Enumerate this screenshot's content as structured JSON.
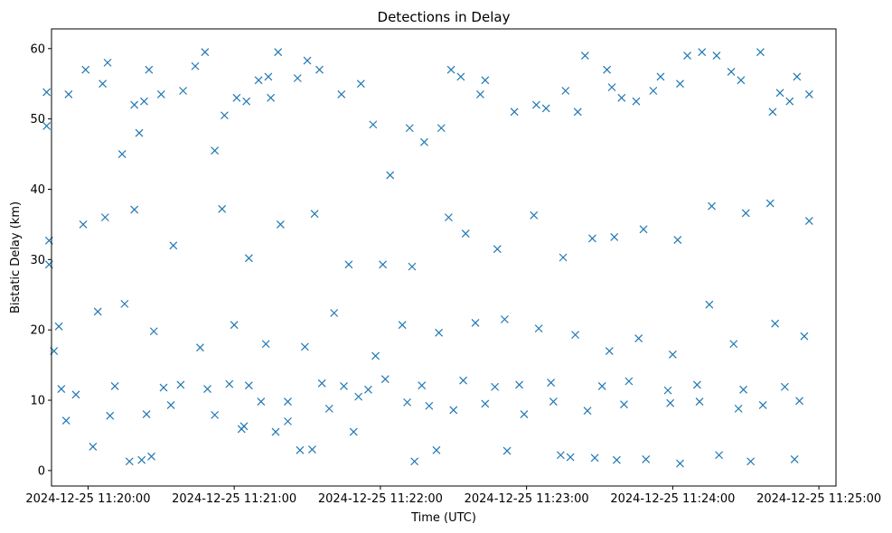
{
  "chart_data": {
    "type": "scatter",
    "title": "Detections in Delay",
    "xlabel": "Time (UTC)",
    "ylabel": "Bistatic Delay (km)",
    "x_ticks": [
      "2024-12-25 11:20:00",
      "2024-12-25 11:21:00",
      "2024-12-25 11:22:00",
      "2024-12-25 11:23:00",
      "2024-12-25 11:24:00",
      "2024-12-25 11:25:00"
    ],
    "y_ticks": [
      "0",
      "10",
      "20",
      "30",
      "40",
      "50",
      "60"
    ],
    "xlim": [
      "2024-12-25 11:19:45",
      "2024-12-25 11:25:07"
    ],
    "ylim": [
      -2.2,
      62.8
    ],
    "grid": false,
    "marker": "x",
    "color": "#1f77b4",
    "series": [
      {
        "x": [
          "2024-12-25 11:19:43",
          "2024-12-25 11:19:43",
          "2024-12-25 11:19:44",
          "2024-12-25 11:19:46",
          "2024-12-25 11:19:52",
          "2024-12-25 11:19:59",
          "2024-12-25 11:20:06",
          "2024-12-25 11:20:08",
          "2024-12-25 11:20:14",
          "2024-12-25 11:20:19",
          "2024-12-25 11:20:21",
          "2024-12-25 11:20:23",
          "2024-12-25 11:20:25",
          "2024-12-25 11:20:30",
          "2024-12-25 11:20:39",
          "2024-12-25 11:20:44",
          "2024-12-25 11:20:48",
          "2024-12-25 11:20:52",
          "2024-12-25 11:20:56",
          "2024-12-25 11:21:01",
          "2024-12-25 11:21:05",
          "2024-12-25 11:21:10",
          "2024-12-25 11:21:14",
          "2024-12-25 11:21:15",
          "2024-12-25 11:21:18",
          "2024-12-25 11:21:26",
          "2024-12-25 11:21:30",
          "2024-12-25 11:21:35",
          "2024-12-25 11:21:44",
          "2024-12-25 11:21:52",
          "2024-12-25 11:21:57",
          "2024-12-25 11:22:04",
          "2024-12-25 11:22:12",
          "2024-12-25 11:22:18",
          "2024-12-25 11:22:25",
          "2024-12-25 11:22:29",
          "2024-12-25 11:22:33",
          "2024-12-25 11:22:41",
          "2024-12-25 11:22:43",
          "2024-12-25 11:22:55",
          "2024-12-25 11:23:04",
          "2024-12-25 11:23:08",
          "2024-12-25 11:23:16",
          "2024-12-25 11:23:21",
          "2024-12-25 11:23:24",
          "2024-12-25 11:23:33",
          "2024-12-25 11:23:35",
          "2024-12-25 11:23:39",
          "2024-12-25 11:23:45",
          "2024-12-25 11:23:52",
          "2024-12-25 11:23:55",
          "2024-12-25 11:24:03",
          "2024-12-25 11:24:06",
          "2024-12-25 11:24:12",
          "2024-12-25 11:24:18",
          "2024-12-25 11:24:24",
          "2024-12-25 11:24:28",
          "2024-12-25 11:24:36",
          "2024-12-25 11:24:41",
          "2024-12-25 11:24:44",
          "2024-12-25 11:24:48",
          "2024-12-25 11:24:51",
          "2024-12-25 11:24:56",
          "2024-12-25 11:19:49",
          "2024-12-25 11:19:55",
          "2024-12-25 11:20:11",
          "2024-12-25 11:20:31",
          "2024-12-25 11:20:38",
          "2024-12-25 11:20:49",
          "2024-12-25 11:20:58",
          "2024-12-25 11:21:06",
          "2024-12-25 11:21:22",
          "2024-12-25 11:21:36",
          "2024-12-25 11:21:45",
          "2024-12-25 11:21:55",
          "2024-12-25 11:22:02",
          "2024-12-25 11:22:17",
          "2024-12-25 11:22:34",
          "2024-12-25 11:22:47",
          "2024-12-25 11:22:57",
          "2024-12-25 11:23:10",
          "2024-12-25 11:23:31",
          "2024-12-25 11:23:42",
          "2024-12-25 11:23:58",
          "2024-12-25 11:24:10",
          "2024-12-25 11:24:29",
          "2024-12-25 11:24:46",
          "2024-12-25 11:20:17",
          "2024-12-25 11:20:22",
          "2024-12-25 11:20:26",
          "2024-12-25 11:21:03",
          "2024-12-25 11:21:04",
          "2024-12-25 11:21:17",
          "2024-12-25 11:21:27",
          "2024-12-25 11:21:32",
          "2024-12-25 11:21:49",
          "2024-12-25 11:22:14",
          "2024-12-25 11:22:23",
          "2024-12-25 11:22:52",
          "2024-12-25 11:23:14",
          "2024-12-25 11:23:18",
          "2024-12-25 11:23:28",
          "2024-12-25 11:23:37",
          "2024-12-25 11:23:49",
          "2024-12-25 11:24:03",
          "2024-12-25 11:24:19",
          "2024-12-25 11:24:32",
          "2024-12-25 11:24:50",
          "2024-12-25 11:19:51",
          "2024-12-25 11:20:02",
          "2024-12-25 11:20:09",
          "2024-12-25 11:20:24",
          "2024-12-25 11:20:34",
          "2024-12-25 11:20:52",
          "2024-12-25 11:21:11",
          "2024-12-25 11:21:22",
          "2024-12-25 11:21:39",
          "2024-12-25 11:21:51",
          "2024-12-25 11:22:11",
          "2024-12-25 11:22:20",
          "2024-12-25 11:22:30",
          "2024-12-25 11:22:43",
          "2024-12-25 11:22:59",
          "2024-12-25 11:23:11",
          "2024-12-25 11:23:25",
          "2024-12-25 11:23:40",
          "2024-12-25 11:23:59",
          "2024-12-25 11:24:11",
          "2024-12-25 11:24:27",
          "2024-12-25 11:24:37",
          "2024-12-25 11:24:52",
          "2024-12-25 11:19:44",
          "2024-12-25 11:19:58",
          "2024-12-25 11:20:07",
          "2024-12-25 11:20:19",
          "2024-12-25 11:20:35",
          "2024-12-25 11:20:55",
          "2024-12-25 11:21:06",
          "2024-12-25 11:21:19",
          "2024-12-25 11:21:33",
          "2024-12-25 11:21:47",
          "2024-12-25 11:22:01",
          "2024-12-25 11:22:13",
          "2024-12-25 11:22:28",
          "2024-12-25 11:22:35",
          "2024-12-25 11:22:48",
          "2024-12-25 11:23:03",
          "2024-12-25 11:23:15",
          "2024-12-25 11:23:27",
          "2024-12-25 11:23:36",
          "2024-12-25 11:23:48",
          "2024-12-25 11:24:02",
          "2024-12-25 11:24:16",
          "2024-12-25 11:24:30",
          "2024-12-25 11:24:40",
          "2024-12-25 11:24:56",
          "2024-12-25 11:19:48",
          "2024-12-25 11:20:04",
          "2024-12-25 11:20:15",
          "2024-12-25 11:20:27",
          "2024-12-25 11:20:46",
          "2024-12-25 11:21:00",
          "2024-12-25 11:21:13",
          "2024-12-25 11:21:29",
          "2024-12-25 11:21:41",
          "2024-12-25 11:21:58",
          "2024-12-25 11:22:09",
          "2024-12-25 11:22:24",
          "2024-12-25 11:22:39",
          "2024-12-25 11:22:51",
          "2024-12-25 11:23:05",
          "2024-12-25 11:23:20",
          "2024-12-25 11:23:34",
          "2024-12-25 11:23:46",
          "2024-12-25 11:24:00",
          "2024-12-25 11:24:15",
          "2024-12-25 11:24:25",
          "2024-12-25 11:24:42",
          "2024-12-25 11:24:54"
        ],
        "y": [
          53.8,
          49.0,
          29.3,
          17.0,
          53.5,
          57.0,
          55.0,
          58.0,
          45.0,
          52.0,
          48.0,
          52.5,
          57.0,
          53.5,
          54.0,
          57.5,
          59.5,
          45.5,
          50.5,
          53.0,
          52.5,
          55.5,
          56.0,
          53.0,
          59.5,
          55.8,
          58.3,
          57.0,
          53.5,
          55.0,
          49.2,
          42.0,
          48.7,
          46.7,
          48.7,
          57.0,
          56.0,
          53.5,
          55.5,
          51.0,
          52.0,
          51.5,
          54.0,
          51.0,
          59.0,
          57.0,
          54.5,
          53.0,
          52.5,
          54.0,
          56.0,
          55.0,
          59.0,
          59.5,
          59.0,
          56.7,
          55.5,
          59.5,
          51.0,
          53.7,
          52.5,
          56.0,
          53.5,
          11.6,
          10.8,
          12.0,
          11.8,
          12.2,
          11.6,
          12.3,
          12.1,
          9.8,
          12.4,
          12.0,
          11.5,
          13.0,
          12.1,
          12.8,
          11.9,
          12.2,
          12.5,
          12.0,
          12.7,
          11.4,
          12.2,
          11.5,
          11.9,
          1.3,
          1.5,
          2.0,
          5.9,
          6.3,
          5.5,
          2.9,
          3.0,
          5.5,
          1.3,
          2.9,
          2.8,
          2.2,
          1.9,
          1.8,
          1.5,
          1.6,
          1.0,
          2.2,
          1.3,
          1.6,
          7.1,
          3.4,
          7.8,
          8.0,
          9.3,
          7.9,
          9.8,
          7.0,
          8.8,
          10.5,
          9.7,
          9.2,
          8.6,
          9.5,
          8.0,
          9.8,
          8.5,
          9.4,
          9.6,
          9.8,
          8.8,
          9.3,
          9.9,
          32.7,
          35.0,
          36.0,
          37.1,
          32.0,
          37.2,
          30.2,
          35.0,
          36.5,
          29.3,
          29.3,
          29.0,
          36.0,
          33.7,
          31.5,
          36.3,
          30.3,
          33.0,
          33.2,
          34.3,
          32.8,
          37.6,
          36.6,
          38.0,
          35.5,
          20.5,
          22.6,
          23.7,
          19.8,
          17.5,
          20.7,
          18.0,
          17.6,
          22.4,
          16.3,
          20.7,
          19.6,
          21.0,
          21.5,
          20.2,
          19.3,
          17.0,
          18.8,
          16.5,
          23.6,
          18.0,
          20.9,
          19.1
        ]
      }
    ]
  }
}
